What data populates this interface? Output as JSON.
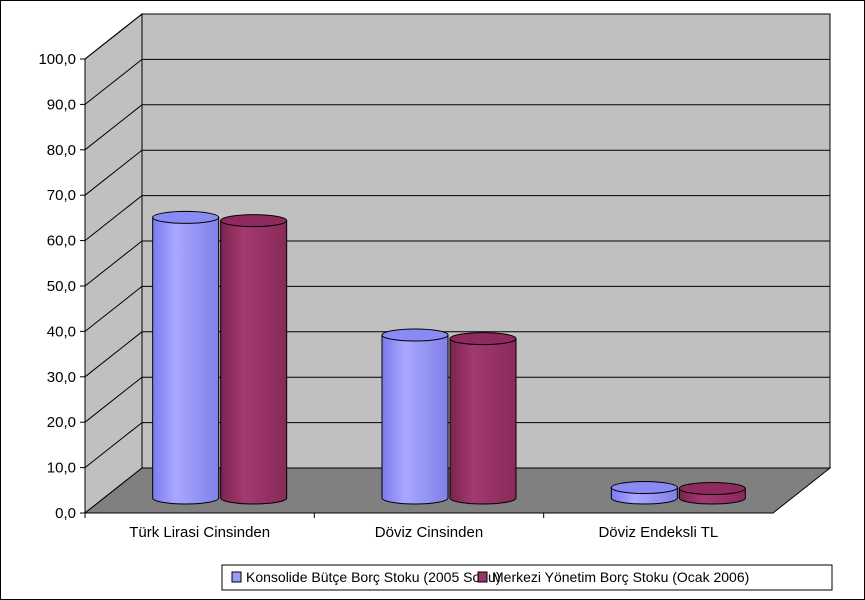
{
  "chart_data": {
    "type": "bar",
    "style": "3d-cylinder",
    "categories": [
      "Türk Lirasi Cinsinden",
      "Döviz Cinsinden",
      "Döviz Endeksli TL"
    ],
    "series": [
      {
        "name": "Konsolide Bütçe Borç Stoku (2005 Sonu)",
        "values": [
          61.8,
          35.9,
          2.3
        ],
        "color": "#9999ff"
      },
      {
        "name": "Merkezi Yönetim Borç Stoku (Ocak 2006)",
        "values": [
          61.1,
          35.1,
          2.1
        ],
        "color": "#993366"
      }
    ],
    "ylim": [
      0,
      100
    ],
    "yticks": [
      "0,0",
      "10,0",
      "20,0",
      "30,0",
      "40,0",
      "50,0",
      "60,0",
      "70,0",
      "80,0",
      "90,0",
      "100,0"
    ],
    "grid": true,
    "legend_position": "bottom",
    "wall_color": "#c0c0c0",
    "floor_color": "#808080"
  }
}
